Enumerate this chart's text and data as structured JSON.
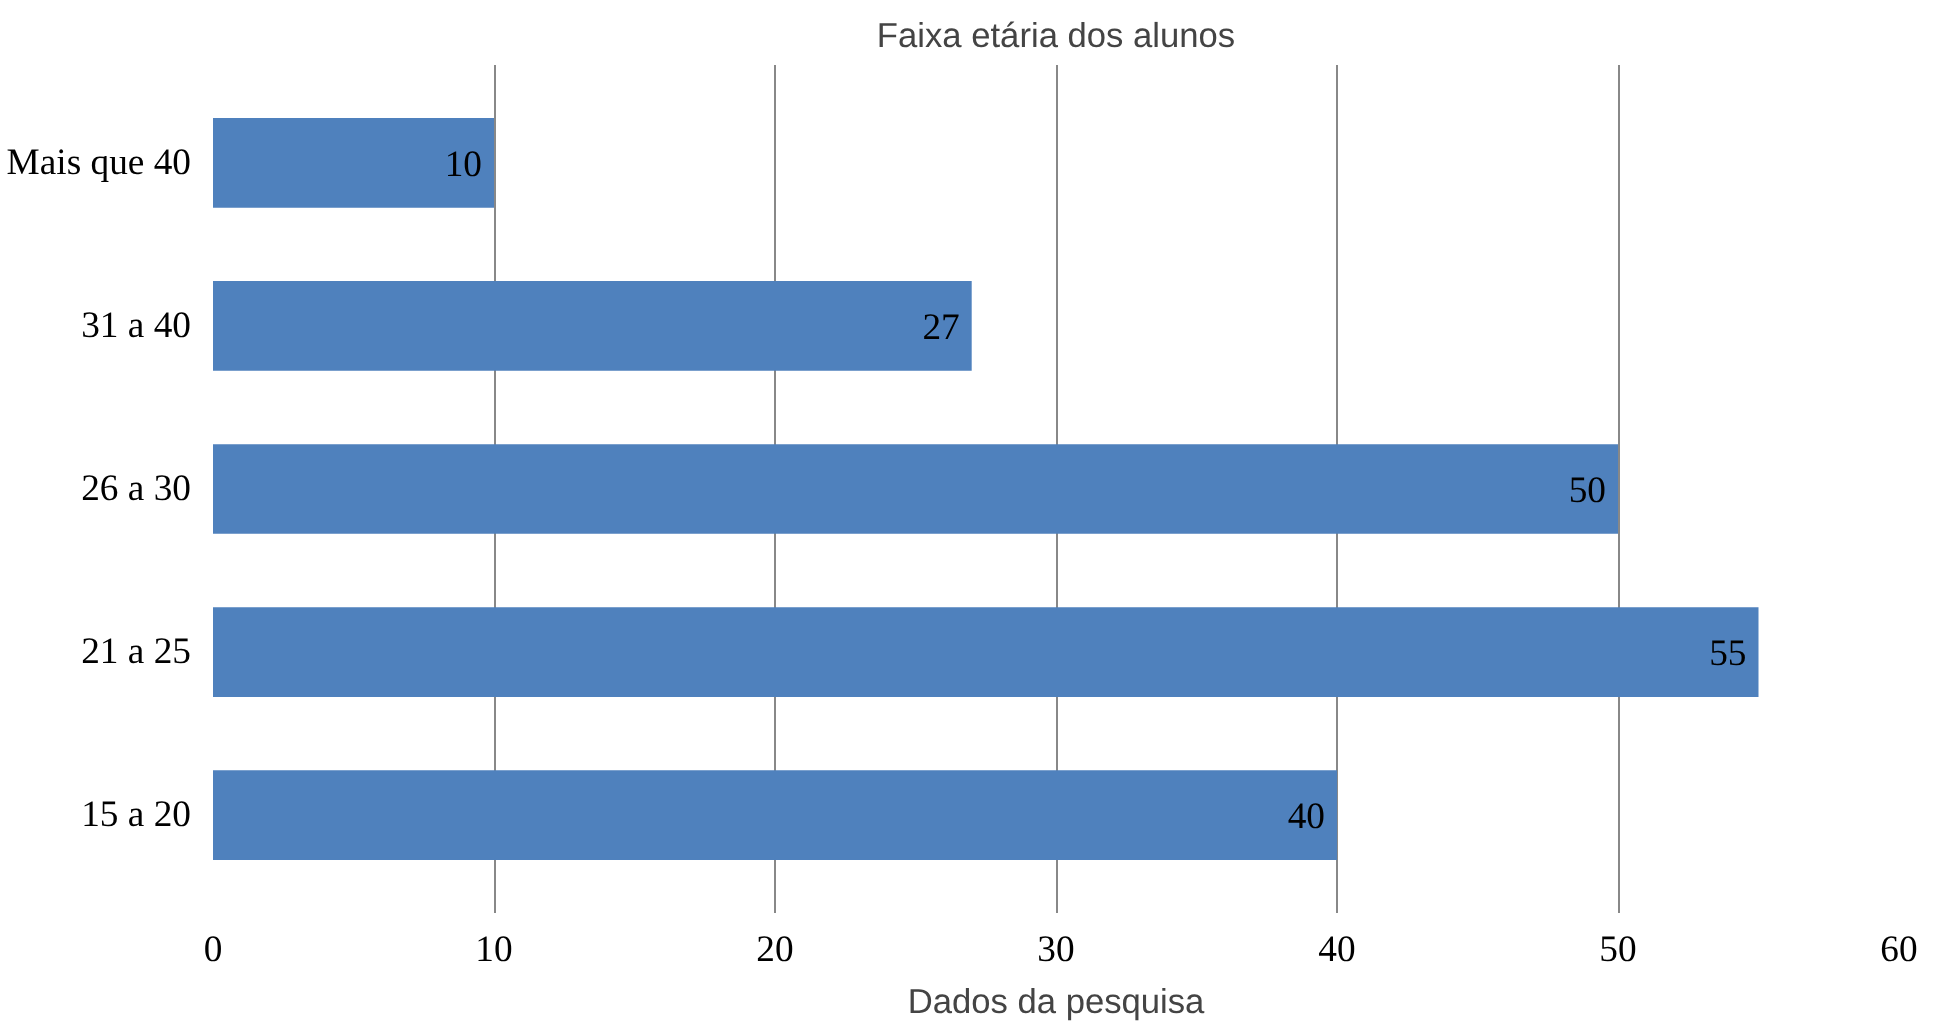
{
  "chart_data": {
    "type": "bar",
    "orientation": "horizontal",
    "title": "Faixa etária dos alunos",
    "categories": [
      "Mais que 40",
      "31 a 40",
      "26 a 30",
      "21 a 25",
      "15 a 20"
    ],
    "values": [
      10,
      27,
      50,
      55,
      40
    ],
    "color": "#4f81bd",
    "xlim": [
      0,
      60
    ],
    "xticks": [
      0,
      10,
      20,
      30,
      40,
      50,
      60
    ],
    "grid": "x",
    "data_labels": true,
    "annotations": [
      "Dados da pesquisa"
    ]
  }
}
